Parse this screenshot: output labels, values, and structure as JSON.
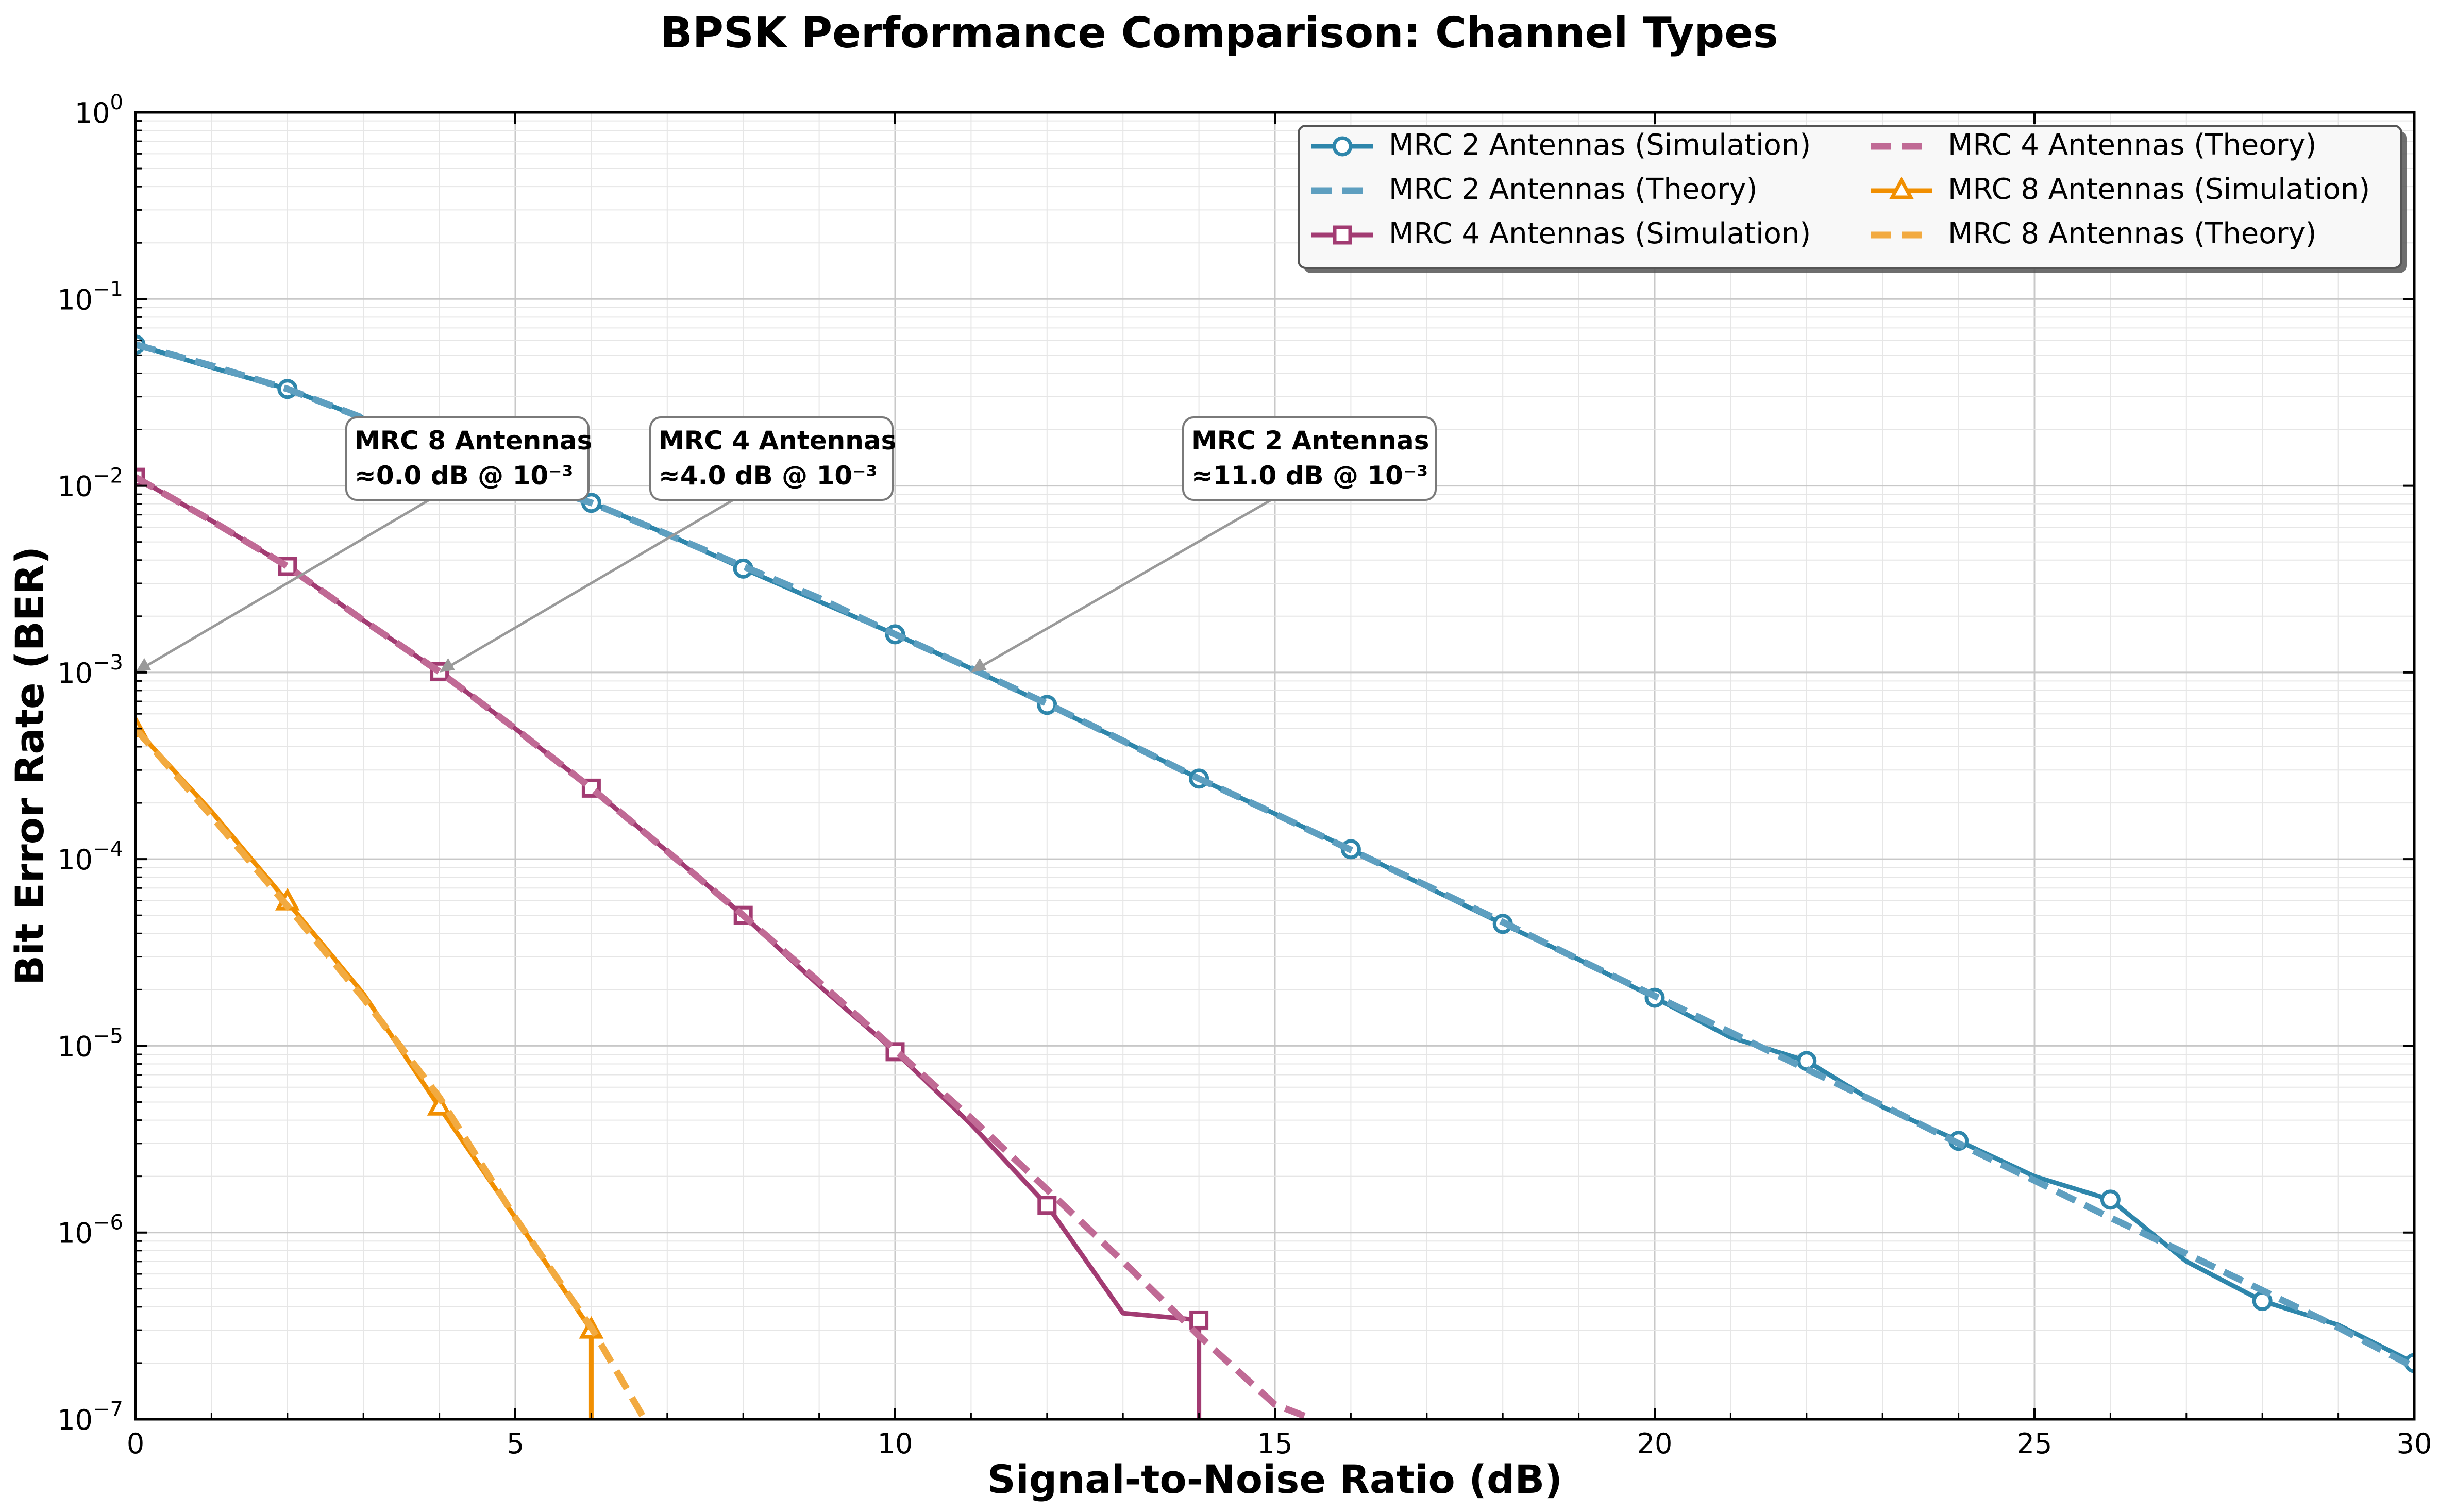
{
  "chart_data": {
    "type": "line",
    "title": "BPSK Performance Comparison: Channel Types",
    "xlabel": "Signal-to-Noise Ratio (dB)",
    "ylabel": "Bit Error Rate (BER)",
    "xlim": [
      0,
      30
    ],
    "ylim": [
      1e-07,
      1
    ],
    "yscale": "log",
    "grid": "on (major and minor)",
    "legend_placement": "top-right",
    "x_ticks": [
      0,
      5,
      10,
      15,
      20,
      25,
      30
    ],
    "x_tick_labels": [
      "0",
      "5",
      "10",
      "15",
      "20",
      "25",
      "30"
    ],
    "y_ticks": [
      1e-07,
      1e-06,
      1e-05,
      0.0001,
      0.001,
      0.01,
      0.1,
      1
    ],
    "y_tick_labels": [
      {
        "base": "10",
        "exp": "−7"
      },
      {
        "base": "10",
        "exp": "−6"
      },
      {
        "base": "10",
        "exp": "−5"
      },
      {
        "base": "10",
        "exp": "−4"
      },
      {
        "base": "10",
        "exp": "−3"
      },
      {
        "base": "10",
        "exp": "−2"
      },
      {
        "base": "10",
        "exp": "−1"
      },
      {
        "base": "10",
        "exp": "0"
      }
    ],
    "series": [
      {
        "name": "MRC 2 Antennas (Simulation)",
        "color": "#2e86ab",
        "style": "solid",
        "marker": "circle",
        "x": [
          0,
          1,
          2,
          3,
          4,
          5,
          6,
          7,
          8,
          9,
          10,
          11,
          12,
          13,
          14,
          15,
          16,
          17,
          18,
          19,
          20,
          21,
          22,
          23,
          24,
          25,
          26,
          27,
          28,
          29,
          30
        ],
        "y": [
          0.057,
          0.043,
          0.033,
          0.023,
          0.016,
          0.011,
          0.0081,
          0.0055,
          0.0036,
          0.0024,
          0.0016,
          0.00105,
          0.00067,
          0.00043,
          0.00027,
          0.000175,
          0.000113,
          7.1e-05,
          4.5e-05,
          2.9e-05,
          1.81e-05,
          1.11e-05,
          8.3e-06,
          4.7e-06,
          3.1e-06,
          2e-06,
          1.5e-06,
          7e-07,
          4.3e-07,
          3.2e-07,
          2e-07
        ]
      },
      {
        "name": "MRC 2 Antennas (Theory)",
        "color": "#5e9fc0",
        "style": "dashed",
        "marker": "none",
        "x": [
          0,
          1,
          2,
          3,
          4,
          5,
          6,
          7,
          8,
          9,
          10,
          11,
          12,
          13,
          14,
          15,
          16,
          17,
          18,
          19,
          20,
          21,
          22,
          23,
          24,
          25,
          26,
          27,
          28,
          29,
          30
        ],
        "y": [
          0.057,
          0.044,
          0.033,
          0.023,
          0.016,
          0.011,
          0.0081,
          0.0055,
          0.0037,
          0.0025,
          0.0016,
          0.00105,
          0.00068,
          0.00043,
          0.00027,
          0.000175,
          0.000112,
          7.2e-05,
          4.6e-05,
          2.9e-05,
          1.85e-05,
          1.18e-05,
          7.5e-06,
          4.8e-06,
          3e-06,
          1.9e-06,
          1.2e-06,
          7.7e-07,
          4.9e-07,
          3.1e-07,
          1.9e-07
        ]
      },
      {
        "name": "MRC 4 Antennas (Simulation)",
        "color": "#a23b72",
        "style": "solid",
        "marker": "square",
        "x": [
          0,
          1,
          2,
          3,
          4,
          5,
          6,
          7,
          8,
          9,
          10,
          11,
          12,
          13,
          14,
          14
        ],
        "y": [
          0.0111,
          0.0065,
          0.0037,
          0.0019,
          0.00101,
          0.0005,
          0.00024,
          0.00011,
          5e-05,
          2.1e-05,
          9.3e-06,
          3.8e-06,
          1.4e-06,
          3.7e-07,
          3.4e-07,
          1e-07
        ]
      },
      {
        "name": "MRC 4 Antennas (Theory)",
        "color": "#c06a95",
        "style": "dashed",
        "marker": "none",
        "x": [
          0,
          1,
          2,
          3,
          4,
          5,
          6,
          7,
          8,
          9,
          10,
          11,
          12,
          13,
          14,
          15,
          15.5
        ],
        "y": [
          0.0111,
          0.0065,
          0.0037,
          0.0019,
          0.00101,
          0.0005,
          0.00024,
          0.00011,
          5e-05,
          2.2e-05,
          9.5e-06,
          4.1e-06,
          1.7e-06,
          7e-07,
          2.8e-07,
          1.2e-07,
          1e-07
        ]
      },
      {
        "name": "MRC 8 Antennas (Simulation)",
        "color": "#f18f01",
        "style": "solid",
        "marker": "triangle",
        "x": [
          0,
          1,
          2,
          3,
          4,
          5,
          6,
          6
        ],
        "y": [
          0.0005,
          0.00018,
          5.9e-05,
          1.9e-05,
          4.7e-06,
          1.2e-06,
          3e-07,
          1e-07
        ]
      },
      {
        "name": "MRC 8 Antennas (Theory)",
        "color": "#f2aa40",
        "style": "dashed",
        "marker": "none",
        "x": [
          0,
          1,
          2,
          3,
          4,
          5,
          6,
          6.7
        ],
        "y": [
          0.0005,
          0.00017,
          5.6e-05,
          1.8e-05,
          5.3e-06,
          1.2e-06,
          3.1e-07,
          1e-07
        ]
      }
    ],
    "annotations": [
      {
        "line1": "MRC 8 Antennas",
        "line2": "≈0.0 dB @ 10⁻³",
        "x": 0,
        "y": 0.001
      },
      {
        "line1": "MRC 4 Antennas",
        "line2": "≈4.0 dB @ 10⁻³",
        "x": 4,
        "y": 0.001
      },
      {
        "line1": "MRC 2 Antennas",
        "line2": "≈11.0 dB @ 10⁻³",
        "x": 11,
        "y": 0.001
      }
    ]
  }
}
